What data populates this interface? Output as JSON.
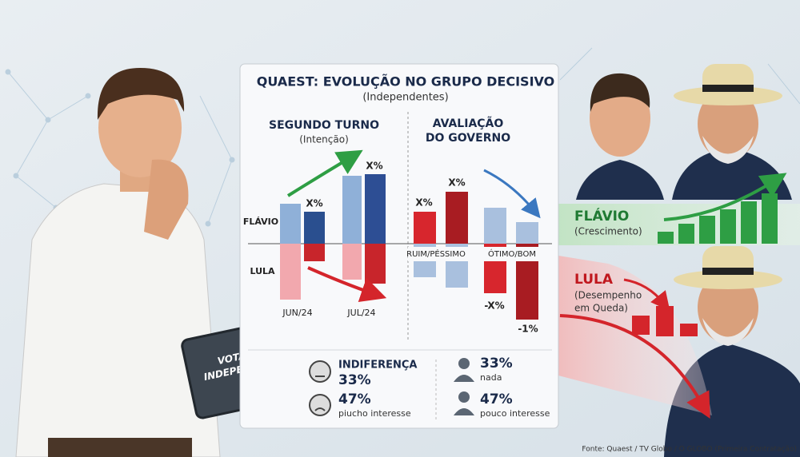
{
  "panel": {
    "title": "QUAEST: EVOLUÇÃO NO GRUPO DECISIVO",
    "subtitle": "(Independentes)",
    "second_round": {
      "title": "SEGUNDO TURNO",
      "subtitle": "(Intenção)",
      "rows": [
        "FLÁVIO",
        "LULA"
      ],
      "labels": [
        "X%",
        "X%"
      ],
      "periods": [
        "JUN/24",
        "JUL/24"
      ]
    },
    "government": {
      "title": [
        "AVALIAÇÃO",
        "DO GOVERNO"
      ],
      "labels": [
        "X%",
        "X%"
      ],
      "categories": [
        "RUIM/PÉSSIMO",
        "ÓTIMO/BOM"
      ],
      "negative_labels": [
        "-X%",
        "-1%"
      ]
    },
    "interest": {
      "heading": "INDIFERENÇA",
      "left": [
        {
          "value": "33%"
        },
        {
          "value": "47%",
          "text": "piucho interesse"
        }
      ],
      "right": [
        {
          "value": "33%",
          "text": "nada"
        },
        {
          "value": "47%",
          "text": "pouco interesse"
        }
      ]
    }
  },
  "tablet": [
    "VOTANTES",
    "INDEPENDENTES"
  ],
  "flavio": {
    "name": "FLÁVIO",
    "note": "(Crescimento)"
  },
  "lula": {
    "name": "LULA",
    "note": [
      "(Desempenho",
      "em Queda)"
    ]
  },
  "source": "Fonte: Quaest / TV Globo / O GLOBO (Primeira Contratação)"
}
